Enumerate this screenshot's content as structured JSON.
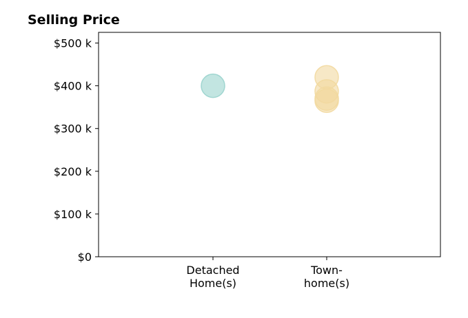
{
  "chart_data": {
    "type": "scatter",
    "title": "Selling Price",
    "xlabel": "",
    "ylabel": "",
    "categories": [
      [
        "Detached",
        "Home(s)"
      ],
      [
        "Town-",
        "home(s)"
      ]
    ],
    "ylim": [
      0,
      525000
    ],
    "yticks": [
      0,
      100000,
      200000,
      300000,
      400000,
      500000
    ],
    "ytick_labels": [
      "$0",
      "$100 k",
      "$200 k",
      "$300 k",
      "$400 k",
      "$500 k"
    ],
    "grid": false,
    "points": [
      {
        "category": 0,
        "value": 400000,
        "color": "#99d3cd"
      },
      {
        "category": 1,
        "value": 420000,
        "color": "#f2d9a0"
      },
      {
        "category": 1,
        "value": 387000,
        "color": "#f2d9a0"
      },
      {
        "category": 1,
        "value": 370000,
        "color": "#f2d9a0"
      },
      {
        "category": 1,
        "value": 365000,
        "color": "#f2d9a0"
      }
    ]
  }
}
